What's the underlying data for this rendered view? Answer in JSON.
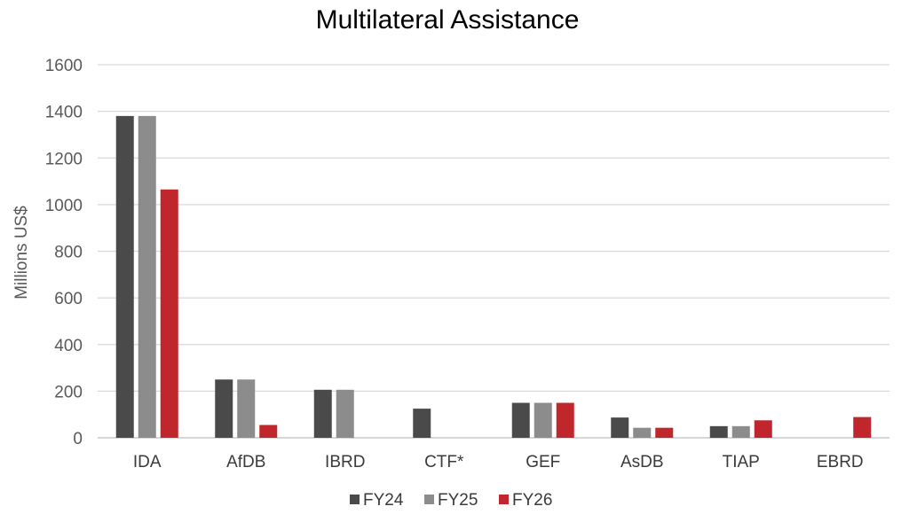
{
  "chart_data": {
    "type": "bar",
    "title": "Multilateral Assistance",
    "xlabel": "",
    "ylabel": "Millions US$",
    "ylim": [
      0,
      1600
    ],
    "yticks": [
      0,
      200,
      400,
      600,
      800,
      1000,
      1200,
      1400,
      1600
    ],
    "grid": true,
    "legend_position": "bottom",
    "categories": [
      "IDA",
      "AfDB",
      "IBRD",
      "CTF*",
      "GEF",
      "AsDB",
      "TIAP",
      "EBRD"
    ],
    "series": [
      {
        "name": "FY24",
        "color": "#4a4a4a",
        "values": [
          1380,
          250,
          206,
          125,
          150,
          87,
          50,
          0
        ]
      },
      {
        "name": "FY25",
        "color": "#8c8c8c",
        "values": [
          1380,
          250,
          206,
          0,
          150,
          43,
          50,
          0
        ]
      },
      {
        "name": "FY26",
        "color": "#c0272d",
        "values": [
          1065,
          55,
          0,
          0,
          150,
          43,
          75,
          89
        ]
      }
    ]
  }
}
